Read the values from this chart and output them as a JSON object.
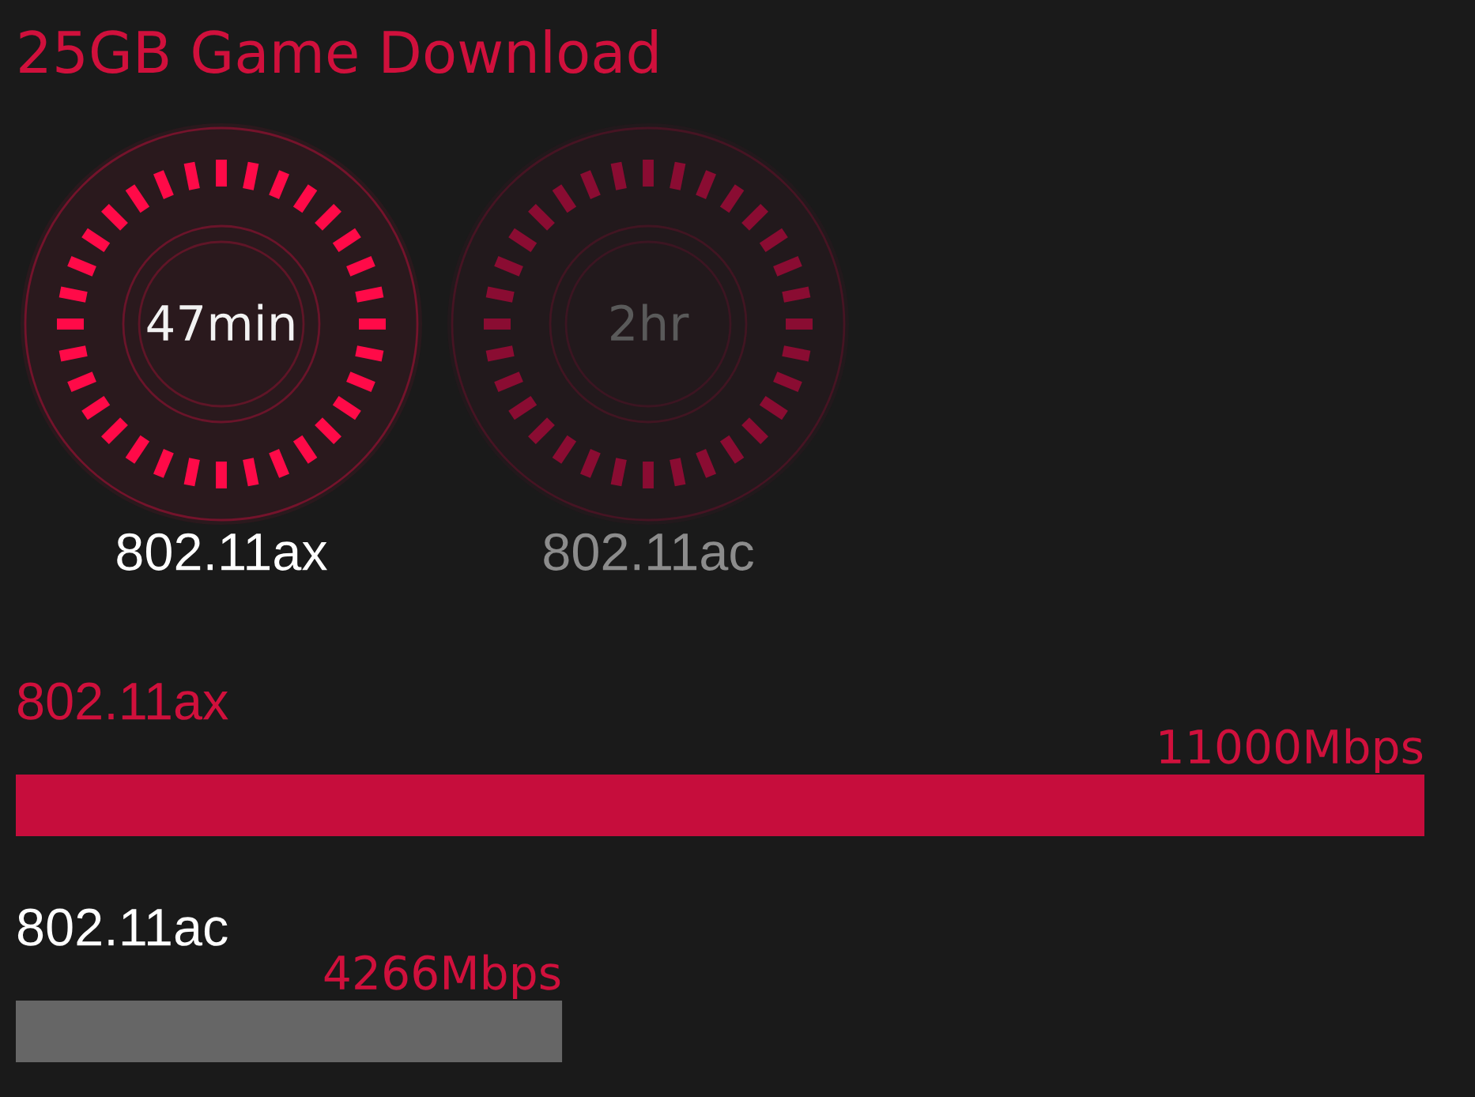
{
  "chart_data": [
    {
      "type": "other",
      "title": "25GB Game Download",
      "categories": [
        "802.11ax",
        "802.11ac"
      ],
      "value_labels": [
        "47min",
        "2hr"
      ],
      "colors": [
        "#ff0a48",
        "#8a0c32"
      ]
    },
    {
      "type": "bar",
      "orientation": "horizontal",
      "categories": [
        "802.11ax",
        "802.11ac"
      ],
      "values": [
        11000,
        4266
      ],
      "value_labels": [
        "11000Mbps",
        "4266Mbps"
      ],
      "colors": [
        "#c60d3c",
        "#666666"
      ]
    }
  ]
}
